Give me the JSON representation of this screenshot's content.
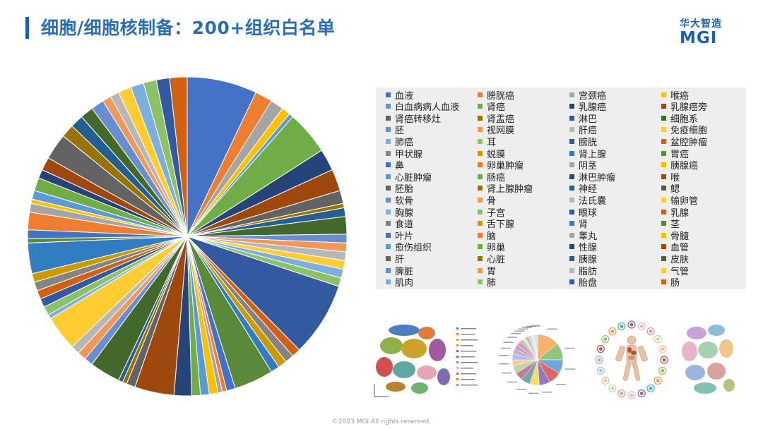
{
  "title": "细胞/细胞核制备：200+组织白名单",
  "logo": {
    "cn": "华大智造",
    "en": "MGI"
  },
  "footer": "©2023 MGI All rights reserved.",
  "colors": {
    "title": "#2a6db4",
    "palette": [
      "#4472c4",
      "#ed7d31",
      "#a5a5a5",
      "#ffc000",
      "#5b9bd5",
      "#70ad47",
      "#264478",
      "#9e480e",
      "#636363",
      "#997300",
      "#255e91",
      "#43682b",
      "#698ed0",
      "#f1975a",
      "#b7b7b7",
      "#ffcd33",
      "#7cafdd",
      "#8cc168",
      "#335aa1",
      "#d26012",
      "#848484",
      "#cc9a00",
      "#327dc2",
      "#5a8a39"
    ]
  },
  "chart_data": {
    "type": "pie",
    "title": "",
    "legend_position": "right",
    "categories": [
      "血液",
      "膀胱癌",
      "宫颈癌",
      "喉癌",
      "白血病病人血液",
      "肾癌",
      "乳腺癌",
      "乳腺癌旁",
      "肾癌转移灶",
      "肾盂癌",
      "淋巴",
      "细胞系",
      "胚",
      "视网膜",
      "肝癌",
      "免疫细胞",
      "肺癌",
      "耳",
      "膀胱",
      "盆腔肿瘤",
      "甲状腺",
      "蜕膜",
      "肾上腺",
      "胃癌",
      "鼻",
      "卵巢肿瘤",
      "阴茎",
      "胰腺癌",
      "心脏肿瘤",
      "肠癌",
      "淋巴肿瘤",
      "喉",
      "胚胎",
      "肾上腺肿瘤",
      "神经",
      "鳃",
      "软骨",
      "骨",
      "法氏囊",
      "输卵管",
      "胸腺",
      "子宫",
      "眼球",
      "乳腺",
      "食道",
      "舌下腺",
      "肾",
      "茎",
      "叶片",
      "脑",
      "睾丸",
      "骨髓",
      "愈伤组织",
      "卵巢",
      "性腺",
      "血管",
      "肝",
      "心脏",
      "胰腺",
      "皮肤",
      "脾脏",
      "胃",
      "脂肪",
      "气管",
      "肌肉",
      "肺",
      "胎盘",
      "肠"
    ],
    "values": [
      8.0,
      2.0,
      1.5,
      1.0,
      0.5,
      5.0,
      2.5,
      2.5,
      1.5,
      0.5,
      1.0,
      2.0,
      1.0,
      1.0,
      1.0,
      1.0,
      1.0,
      1.0,
      8.5,
      1.0,
      1.0,
      1.0,
      1.0,
      4.5,
      1.0,
      0.5,
      0.5,
      1.0,
      1.0,
      1.0,
      2.0,
      4.5,
      1.0,
      0.5,
      0.5,
      3.5,
      1.0,
      1.0,
      1.0,
      4.0,
      0.5,
      1.0,
      1.0,
      1.0,
      1.0,
      1.0,
      3.5,
      0.5,
      1.0,
      2.0,
      1.0,
      0.5,
      1.0,
      1.5,
      1.0,
      1.5,
      3.0,
      1.5,
      1.5,
      1.5,
      1.5,
      1.0,
      1.0,
      1.5,
      1.5,
      1.5,
      1.5,
      2.0
    ]
  }
}
